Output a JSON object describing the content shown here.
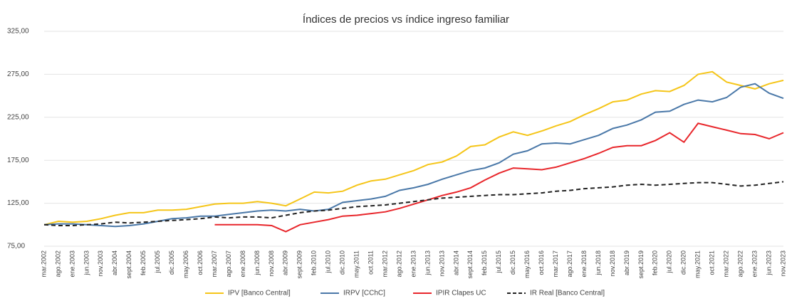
{
  "chart_data": {
    "type": "line",
    "title": "Índices de precios vs índice ingreso familiar",
    "categories": [
      "mar.2002",
      "ago.2002",
      "ene.2003",
      "jun.2003",
      "nov.2003",
      "abr.2004",
      "sept.2004",
      "feb.2005",
      "jul.2005",
      "dic.2005",
      "may.2006",
      "oct.2006",
      "mar.2007",
      "ago.2007",
      "ene.2008",
      "jun.2008",
      "nov.2008",
      "abr.2009",
      "sept.2009",
      "feb.2010",
      "jul.2010",
      "dic.2010",
      "may.2011",
      "oct.2011",
      "mar.2012",
      "ago.2012",
      "ene.2013",
      "jun.2013",
      "nov.2013",
      "abr.2014",
      "sept.2014",
      "feb.2015",
      "jul.2015",
      "dic.2015",
      "may.2016",
      "oct.2016",
      "mar.2017",
      "ago.2017",
      "ene.2018",
      "jun.2018",
      "nov.2018",
      "abr.2019",
      "sept.2019",
      "feb.2020",
      "jul.2020",
      "dic.2020",
      "may.2021",
      "oct.2021",
      "mar.2022",
      "ago.2022",
      "ene.2023",
      "jun.2023",
      "nov.2023"
    ],
    "series": [
      {
        "name": "IPV [Banco Central]",
        "color": "#f5c518",
        "values": [
          100,
          104,
          103,
          104,
          107,
          111,
          114,
          114,
          117,
          117,
          118,
          121,
          124,
          125,
          125,
          127,
          125,
          122,
          130,
          138,
          137,
          139,
          146,
          151,
          153,
          158,
          163,
          170,
          173,
          180,
          191,
          193,
          202,
          208,
          204,
          209,
          215,
          220,
          228,
          235,
          243,
          245,
          252,
          256,
          255,
          262,
          275,
          278,
          266,
          262,
          258,
          264,
          268
        ]
      },
      {
        "name": "IRPV [CChC]",
        "color": "#4a78a8",
        "values": [
          100,
          101,
          101,
          100,
          99,
          98,
          99,
          101,
          104,
          107,
          108,
          110,
          110,
          112,
          114,
          116,
          117,
          116,
          118,
          116,
          118,
          126,
          128,
          130,
          133,
          140,
          143,
          147,
          153,
          158,
          163,
          166,
          172,
          182,
          186,
          194,
          195,
          194,
          199,
          204,
          212,
          216,
          222,
          231,
          232,
          240,
          245,
          243,
          248,
          260,
          264,
          253,
          247
        ]
      },
      {
        "name": "IPIR Clapes UC",
        "color": "#e8262b",
        "values": [
          null,
          null,
          null,
          null,
          null,
          null,
          null,
          null,
          null,
          null,
          null,
          null,
          100,
          100,
          100,
          100,
          99,
          92,
          100,
          103,
          106,
          110,
          111,
          113,
          115,
          119,
          124,
          129,
          134,
          138,
          143,
          152,
          160,
          166,
          165,
          164,
          167,
          172,
          177,
          183,
          190,
          192,
          192,
          198,
          207,
          196,
          218,
          214,
          210,
          206,
          205,
          200,
          207
        ]
      },
      {
        "name": "IR Real [Banco Central]",
        "color": "#222222",
        "dash": true,
        "values": [
          100,
          99,
          99,
          100,
          101,
          103,
          102,
          103,
          104,
          105,
          106,
          107,
          109,
          108,
          109,
          109,
          108,
          111,
          114,
          116,
          117,
          119,
          121,
          122,
          123,
          125,
          127,
          129,
          131,
          132,
          133,
          134,
          135,
          135,
          136,
          137,
          139,
          140,
          142,
          143,
          144,
          146,
          147,
          146,
          147,
          148,
          149,
          149,
          147,
          145,
          146,
          148,
          150
        ]
      }
    ],
    "ylim": [
      75,
      325
    ],
    "yticks": [
      {
        "value": 75,
        "label": "75,00"
      },
      {
        "value": 125,
        "label": "125,00"
      },
      {
        "value": 175,
        "label": "175,00"
      },
      {
        "value": 225,
        "label": "225,00"
      },
      {
        "value": 275,
        "label": "275,00"
      },
      {
        "value": 325,
        "label": "325,00"
      }
    ],
    "grid": true,
    "legend": "bottom"
  }
}
